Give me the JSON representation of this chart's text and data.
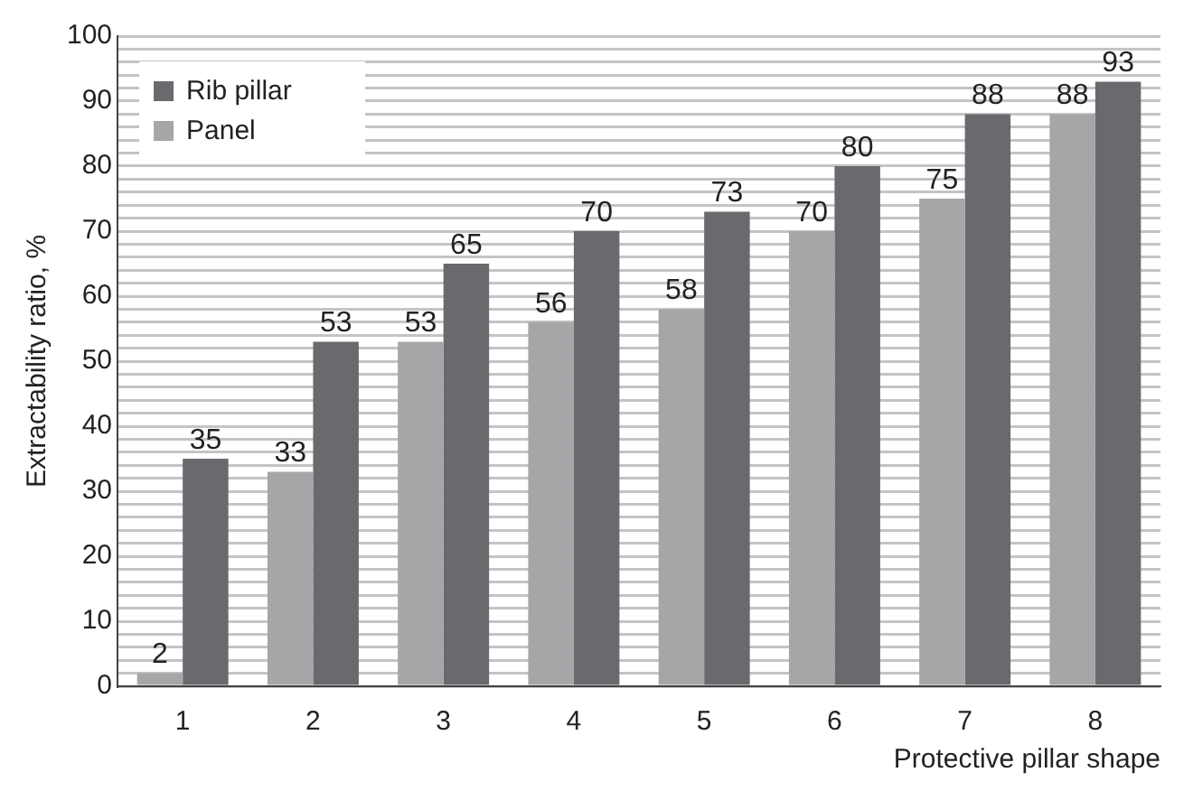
{
  "chart_data": {
    "type": "bar",
    "xlabel": "Protective pillar shape",
    "ylabel": "Extractability ratio, %",
    "categories": [
      "1",
      "2",
      "3",
      "4",
      "5",
      "6",
      "7",
      "8"
    ],
    "series": [
      {
        "name": "Panel",
        "color": "#a6a6a8",
        "values": [
          2,
          33,
          53,
          56,
          58,
          70,
          75,
          88
        ]
      },
      {
        "name": "Rib pillar",
        "color": "#6a6a6e",
        "values": [
          35,
          53,
          65,
          70,
          73,
          80,
          88,
          93
        ]
      }
    ],
    "ylim": [
      0,
      100
    ],
    "yticks": [
      0,
      {
        "value": 2,
        "label": null
      },
      {
        "value": 4,
        "label": null
      },
      {
        "value": 6,
        "label": null
      },
      {
        "value": 8,
        "label": null
      },
      10,
      {
        "value": 12,
        "label": null
      },
      {
        "value": 14,
        "label": null
      },
      {
        "value": 16,
        "label": null
      },
      {
        "value": 18,
        "label": null
      },
      20,
      {
        "value": 22,
        "label": null
      },
      {
        "value": 24,
        "label": null
      },
      {
        "value": 26,
        "label": null
      },
      {
        "value": 28,
        "label": null
      },
      30,
      {
        "value": 32,
        "label": null
      },
      {
        "value": 34,
        "label": null
      },
      {
        "value": 36,
        "label": null
      },
      {
        "value": 38,
        "label": null
      },
      40,
      {
        "value": 42,
        "label": null
      },
      {
        "value": 44,
        "label": null
      },
      {
        "value": 46,
        "label": null
      },
      {
        "value": 48,
        "label": null
      },
      50,
      {
        "value": 52,
        "label": null
      },
      {
        "value": 54,
        "label": null
      },
      {
        "value": 56,
        "label": null
      },
      {
        "value": 58,
        "label": null
      },
      60,
      {
        "value": 62,
        "label": null
      },
      {
        "value": 64,
        "label": null
      },
      {
        "value": 66,
        "label": null
      },
      {
        "value": 68,
        "label": null
      },
      70,
      {
        "value": 72,
        "label": null
      },
      {
        "value": 74,
        "label": null
      },
      {
        "value": 76,
        "label": null
      },
      {
        "value": 78,
        "label": null
      },
      80,
      {
        "value": 82,
        "label": null
      },
      {
        "value": 84,
        "label": null
      },
      {
        "value": 86,
        "label": null
      },
      {
        "value": 88,
        "label": null
      },
      90,
      {
        "value": 92,
        "label": null
      },
      {
        "value": 94,
        "label": null
      },
      {
        "value": 96,
        "label": null
      },
      {
        "value": 98,
        "label": null
      },
      100
    ],
    "grid": "y",
    "legend": "top left",
    "data_labels": true
  }
}
